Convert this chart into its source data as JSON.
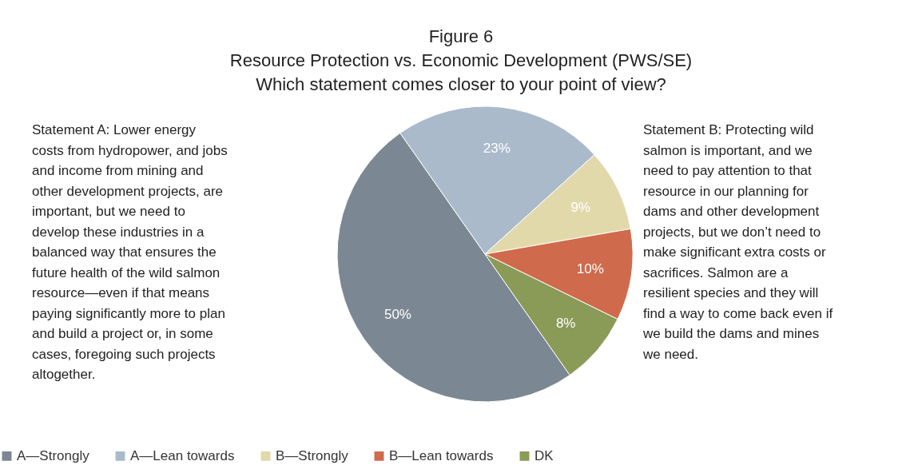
{
  "chart_data": {
    "type": "pie",
    "title": [
      "Figure 6",
      "Resource Protection vs. Economic Development (PWS/SE)",
      "Which statement comes closer to your point of view?"
    ],
    "categories": [
      "A—Strongly",
      "A—Lean towards",
      "B—Strongly",
      "B—Lean towards",
      "DK"
    ],
    "values": [
      50,
      23,
      9,
      10,
      8
    ],
    "colors": [
      "#7b8792",
      "#aabacb",
      "#e2d9ab",
      "#cf6b4c",
      "#8a9a57"
    ],
    "value_labels": [
      "50%",
      "23%",
      "9%",
      "10%",
      "8%"
    ],
    "legend": "bottom",
    "annotations": [
      "Statement A: Lower energy\ncosts from hydropower, and jobs\nand income from mining and\nother development projects, are\nimportant, but we need to\ndevelop these industries in a\nbalanced way that ensures the\nfuture health of the wild salmon\nresource—even if that means\npaying significantly more to plan\nand build a project or, in some\ncases, foregoing such projects\naltogether.",
      "Statement B:  Protecting wild\nsalmon is important, and we\nneed to pay attention to that\nresource in our planning for\ndams and other development\nprojects, but we don’t need to\nmake significant extra costs or\nsacrifices.  Salmon are a\nresilient species and they will\nfind a way to come back even if\nwe build the dams and mines\nwe need."
    ]
  }
}
